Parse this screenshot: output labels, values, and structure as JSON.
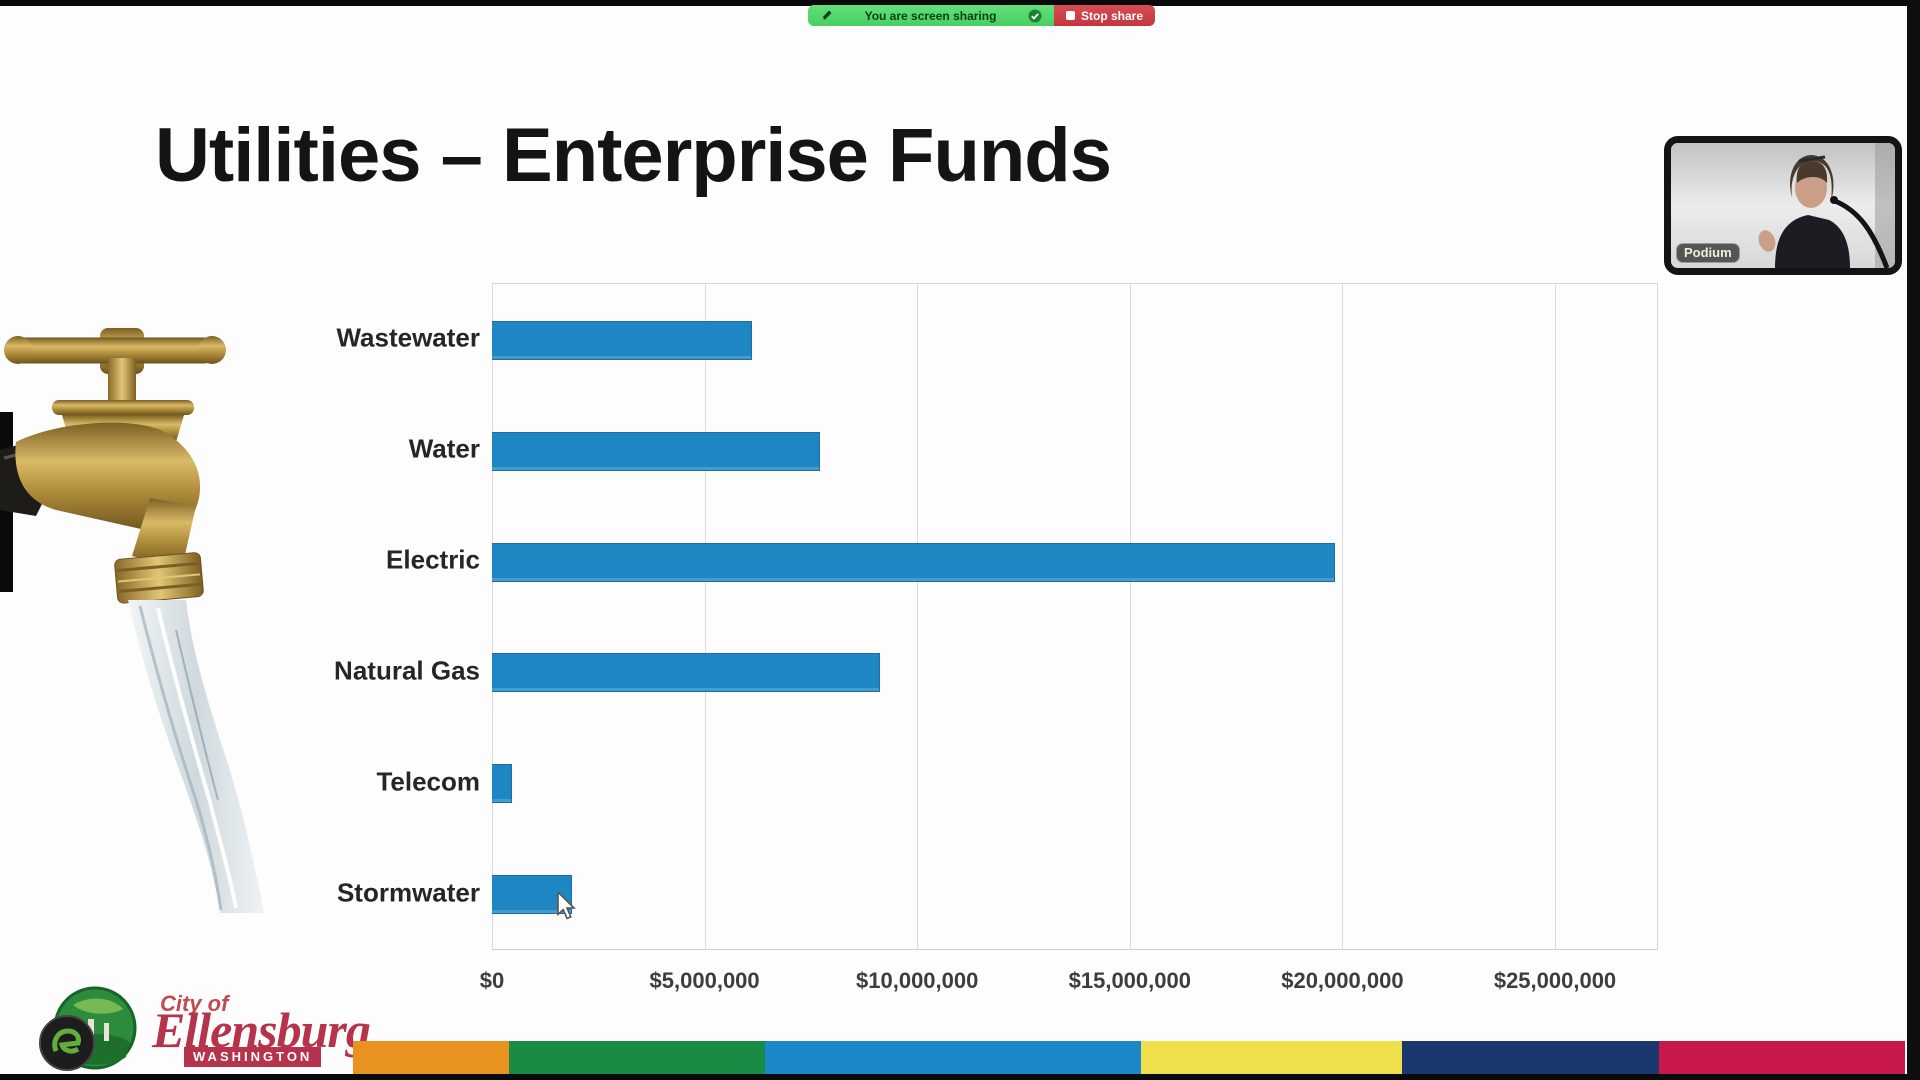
{
  "share_bar": {
    "message": "You are screen sharing",
    "stop_button": "Stop share"
  },
  "slide": {
    "title": "Utilities – Enterprise Funds"
  },
  "chart_data": {
    "type": "bar",
    "orientation": "horizontal",
    "title": "Utilities – Enterprise Funds",
    "categories": [
      "Wastewater",
      "Water",
      "Electric",
      "Natural Gas",
      "Telecom",
      "Stormwater"
    ],
    "values": [
      6100000,
      7700000,
      19800000,
      9100000,
      450000,
      1850000
    ],
    "x_tick_labels": [
      "$0",
      "$5,000,000",
      "$10,000,000",
      "$15,000,000",
      "$20,000,000",
      "$25,000,000"
    ],
    "x_tick_values": [
      0,
      5000000,
      10000000,
      15000000,
      20000000,
      25000000
    ],
    "xlim": [
      0,
      27400000
    ],
    "xlabel": "",
    "ylabel": "",
    "grid": true,
    "legend": "none",
    "bar_color": "#1e86c3"
  },
  "webcam": {
    "name_tag": "Podium"
  },
  "logo": {
    "city_of": "City of",
    "city": "Ellensburg",
    "state": "WASHINGTON"
  },
  "footer": {
    "stripe_colors": [
      "#e89220",
      "#1a8b45",
      "#1c87c9",
      "#efe04b",
      "#1a386e",
      "#c8174b"
    ]
  },
  "colors": {
    "share_pill_green": "#4ccf63",
    "share_stop_red": "#cb3e48",
    "bar_blue": "#1e86c3",
    "logo_red": "#b5344c"
  }
}
